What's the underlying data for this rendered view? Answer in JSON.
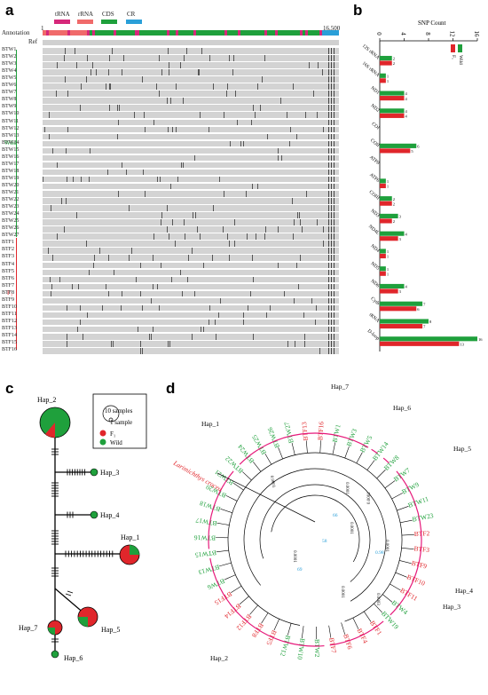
{
  "panels": {
    "a": "a",
    "b": "b",
    "c": "c",
    "d": "d"
  },
  "panel_a": {
    "legend": {
      "trna": "tRNA",
      "rrna": "rRNA",
      "cds": "CDS",
      "cr": "CR"
    },
    "scale_start": "1",
    "scale_end": "16,500",
    "annotation_label": "Annotation",
    "ref_label": "Ref",
    "group_wild": "Wild",
    "group_f1": "F₁",
    "wild_samples": [
      "BTW1",
      "BTW2",
      "BTW3",
      "BTW4",
      "BTW5",
      "BTW6",
      "BTW7",
      "BTW8",
      "BTW9",
      "BTW10",
      "BTW11",
      "BTW12",
      "BTW13",
      "BTW14",
      "BTW15",
      "BTW16",
      "BTW17",
      "BTW18",
      "BTW19",
      "BTW20",
      "BTW21",
      "BTW22",
      "BTW23",
      "BTW24",
      "BTW25",
      "BTW26",
      "BTW27"
    ],
    "f1_samples": [
      "BTF1",
      "BTF2",
      "BTF3",
      "BTF4",
      "BTF5",
      "BTF6",
      "BTF7",
      "BTF8",
      "BTF9",
      "BTF10",
      "BTF11",
      "BTF12",
      "BTF13",
      "BTF14",
      "BTF15",
      "BTF16"
    ],
    "colors": {
      "trna": "#d6287a",
      "rrna": "#f06a6a",
      "cds": "#1fa03c",
      "cr": "#2a9fd8",
      "wild": "#1fa03c",
      "f1": "#e0262b"
    }
  },
  "chart_data": {
    "type": "bar",
    "title": "SNP Count",
    "orientation": "horizontal",
    "xlim": [
      0,
      16
    ],
    "xticks": [
      "0",
      "4",
      "8",
      "12",
      "16"
    ],
    "categories": [
      "12S rRNA",
      "16S rRNA",
      "ND1",
      "ND2",
      "COI",
      "COII",
      "ATP8",
      "ATP6",
      "COIII",
      "ND3",
      "ND4L",
      "ND4",
      "ND5",
      "ND6",
      "Cytb",
      "tRNA",
      "D-loop"
    ],
    "series": [
      {
        "name": "Wild",
        "color": "#1fa03c",
        "values": [
          2,
          1,
          4,
          4,
          0,
          6,
          0,
          1,
          2,
          3,
          4,
          1,
          1,
          4,
          7,
          8,
          16
        ]
      },
      {
        "name": "F₁",
        "color": "#e0262b",
        "values": [
          2,
          1,
          4,
          4,
          0,
          5,
          0,
          1,
          2,
          2,
          3,
          1,
          1,
          3,
          6,
          7,
          13
        ]
      }
    ]
  },
  "panel_c": {
    "legend_large": "10 samples",
    "legend_small": "1 sample",
    "legend_f1": "F₁",
    "legend_wild": "Wild",
    "haplotypes": [
      "Hap_2",
      "Hap_3",
      "Hap_4",
      "Hap_1",
      "Hap_5",
      "Hap_7",
      "Hap_6"
    ]
  },
  "panel_d": {
    "outgroup": "Larimichthys crocea",
    "groups": [
      "Hap_7",
      "Hap_6",
      "Hap_5",
      "Hap_4",
      "Hap_3",
      "Hap_2",
      "Hap_1"
    ],
    "node_values": [
      "0.0001",
      "0.0001",
      "0.0001",
      "0.0001",
      "0.0001",
      "0.0003",
      "0.0001",
      "0.0001"
    ],
    "support": [
      "69",
      "0.98",
      "58",
      "66"
    ]
  }
}
